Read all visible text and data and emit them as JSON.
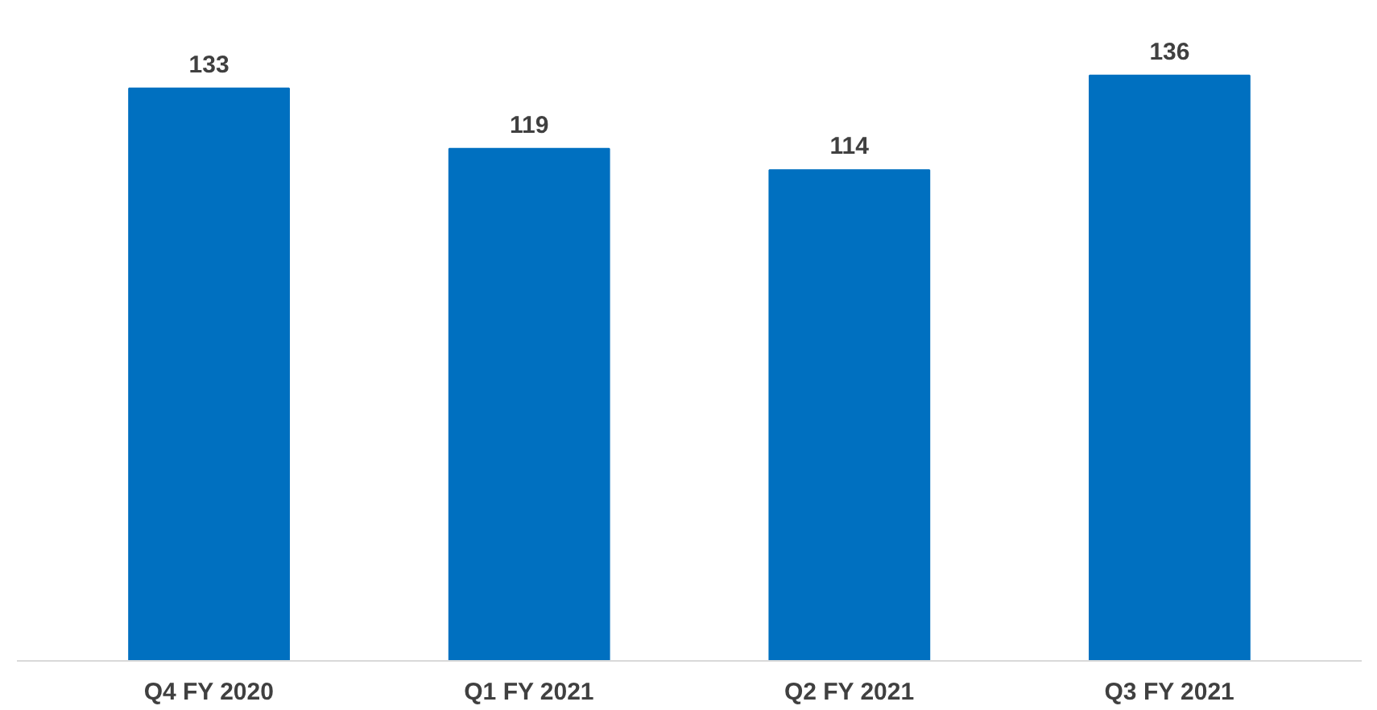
{
  "chart_data": {
    "type": "bar",
    "categories": [
      "Q4 FY 2020",
      "Q1 FY 2021",
      "Q2 FY 2021",
      "Q3 FY 2021"
    ],
    "values": [
      133,
      119,
      114,
      136
    ],
    "color": "#0070c0",
    "data_labels": true,
    "tick_labels": "x",
    "grid": false
  }
}
